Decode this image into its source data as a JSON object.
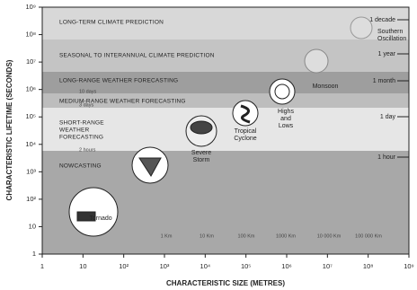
{
  "axes": {
    "x_label": "CHARACTERISTIC SIZE (METRES)",
    "y_label": "CHARACTERISTIC LIFETIME (SECONDS)",
    "x_ticks": [
      1,
      10,
      {
        "value": 100,
        "label": "10²"
      },
      {
        "value": 1000,
        "label": "10³"
      },
      {
        "value": 10000,
        "label": "10⁴"
      },
      {
        "value": 100000,
        "label": "10⁵"
      },
      {
        "value": 1000000,
        "label": "10⁶"
      },
      {
        "value": 10000000,
        "label": "10⁷"
      },
      {
        "value": 100000000,
        "label": "10⁸"
      },
      {
        "value": 1000000000,
        "label": "10⁹"
      }
    ],
    "y_ticks": [
      1,
      10,
      {
        "value": 100,
        "label": "10²"
      },
      {
        "value": 1000,
        "label": "10³"
      },
      {
        "value": 10000,
        "label": "10⁴"
      },
      {
        "value": 100000,
        "label": "10⁵"
      },
      {
        "value": 1000000,
        "label": "10⁶"
      },
      {
        "value": 10000000,
        "label": "10⁷"
      },
      {
        "value": 100000000,
        "label": "10⁸"
      },
      {
        "value": 1000000000,
        "label": "10⁹"
      }
    ]
  },
  "bands": [
    {
      "lines": [
        "LONG-TERM CLIMATE PREDICTION"
      ]
    },
    {
      "lines": [
        "SEASONAL TO INTERANNUAL CLIMATE PREDICTION"
      ]
    },
    {
      "lines": [
        "LONG-RANGE WEATHER FORECASTING"
      ]
    },
    {
      "lines": [
        "MEDIUM-RANGE WEATHER FORECASTING"
      ]
    },
    {
      "lines": [
        "SHORT-RANGE",
        "WEATHER",
        "FORECASTING"
      ]
    },
    {
      "lines": [
        "NOWCASTING"
      ]
    }
  ],
  "time_marks": [
    "1 decade",
    "1 year",
    "1 month",
    "1 day",
    "1 hour"
  ],
  "minor_marks": [
    "10 days",
    "3 days",
    "2 hours"
  ],
  "phenomena": [
    {
      "lines": [
        "Tornado"
      ]
    },
    {
      "lines": [
        "Severe",
        "Storm"
      ]
    },
    {
      "lines": [
        "Tropical",
        "Cyclone"
      ]
    },
    {
      "lines": [
        "Highs",
        "and",
        "Lows"
      ]
    },
    {
      "lines": [
        "Monsoon"
      ]
    },
    {
      "lines": [
        "Southern",
        "Oscillation"
      ]
    }
  ],
  "size_marks": [
    "1 Km",
    "10 Km",
    "100 Km",
    "1000 Km",
    "10 000 Km",
    "100 000 Km"
  ]
}
